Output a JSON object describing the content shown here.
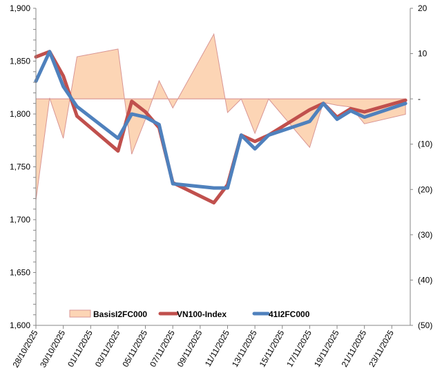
{
  "chart_data": {
    "type": "line",
    "title": "",
    "xlabel": "",
    "ylabel": "",
    "y2label": "",
    "grid": false,
    "legend_placement": "bottom-inside",
    "ylim": [
      1600,
      1900
    ],
    "yticks": [
      1600,
      1650,
      1700,
      1750,
      1800,
      1850,
      1900
    ],
    "ytick_labels": [
      "1,600",
      "1,650",
      "1,700",
      "1,750",
      "1,800",
      "1,850",
      "1,900"
    ],
    "y2lim": [
      -50,
      20
    ],
    "y2ticks": [
      -50,
      -40,
      -30,
      -20,
      -10,
      0,
      10,
      20
    ],
    "y2tick_labels": [
      "(50)",
      "(40)",
      "(30)",
      "(20)",
      "(10)",
      "-",
      "10",
      "20"
    ],
    "xtick_labels": [
      "28/10/2025",
      "30/10/2025",
      "01/11/2025",
      "03/11/2025",
      "05/11/2025",
      "07/11/2025",
      "09/11/2025",
      "11/11/2025",
      "13/11/2025",
      "15/11/2025",
      "17/11/2025",
      "19/11/2025",
      "21/11/2025",
      "23/11/2025"
    ],
    "x": [
      "28/10/2025",
      "29/10/2025",
      "30/10/2025",
      "31/10/2025",
      "03/11/2025",
      "04/11/2025",
      "05/11/2025",
      "06/11/2025",
      "07/11/2025",
      "10/11/2025",
      "11/11/2025",
      "12/11/2025",
      "13/11/2025",
      "14/11/2025",
      "17/11/2025",
      "18/11/2025",
      "19/11/2025",
      "20/11/2025",
      "21/11/2025",
      "24/11/2025"
    ],
    "series": [
      {
        "name": "BasisI2FC000",
        "type": "area",
        "axis": "right",
        "color": "#FCD5B5",
        "edge_color": "#D99694",
        "values": [
          -22.4,
          0.2,
          -8.7,
          9.3,
          11,
          -12.2,
          -4.5,
          4,
          -2,
          14.3,
          -3,
          0,
          -7.6,
          0,
          -10.7,
          -0.8,
          -1.4,
          -1.8,
          -5.5,
          -3.4
        ]
      },
      {
        "name": "VN100-Index",
        "type": "line",
        "axis": "left",
        "color": "#C0504D",
        "values": [
          1854,
          1859,
          1836,
          1798,
          1765,
          1812,
          1802,
          1787,
          1735,
          1716,
          1733,
          1780,
          1774,
          1780,
          1804,
          1810,
          1797,
          1805,
          1802,
          1813
        ]
      },
      {
        "name": "41I2FC000",
        "type": "line",
        "axis": "left",
        "color": "#4F81BD",
        "values": [
          1831,
          1859,
          1826,
          1807,
          1777,
          1800,
          1797,
          1790,
          1734,
          1730,
          1730,
          1780,
          1767,
          1780,
          1793,
          1810,
          1795,
          1803,
          1797,
          1810
        ]
      }
    ]
  }
}
